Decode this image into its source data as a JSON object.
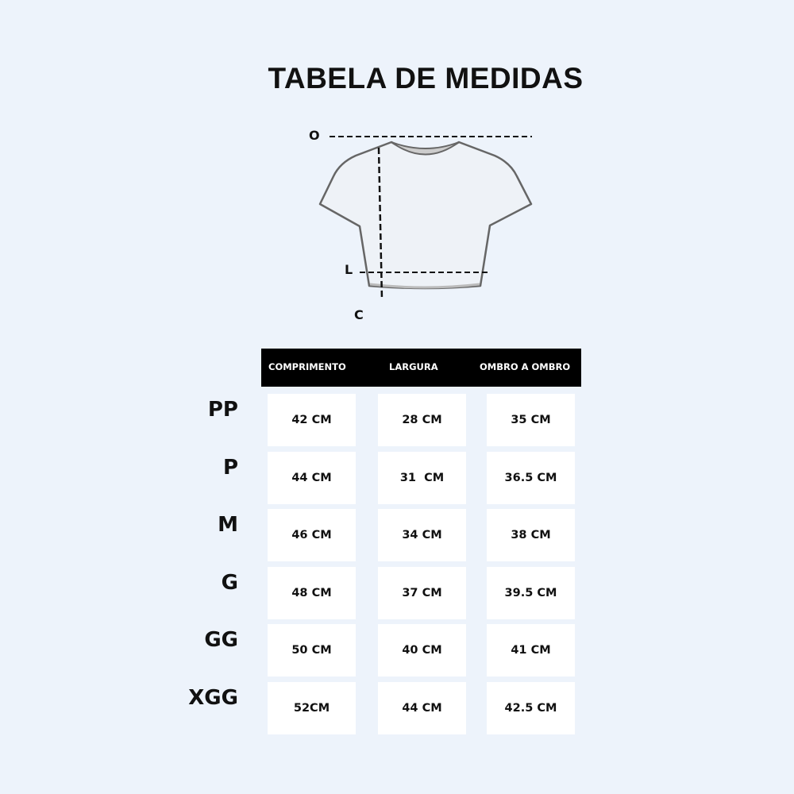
{
  "title": "TABELA DE MEDIDAS",
  "diagram": {
    "labels": {
      "shoulder": "O",
      "width": "L",
      "length": "C"
    }
  },
  "table": {
    "headers": [
      "COMPRIMENTO",
      "LARGURA",
      "OMBRO A OMBRO"
    ],
    "rows": [
      {
        "size": "PP",
        "values": [
          "42 CM",
          "28 CM",
          "35 CM"
        ]
      },
      {
        "size": "P",
        "values": [
          "44 CM",
          "31  CM",
          "36.5 CM"
        ]
      },
      {
        "size": "M",
        "values": [
          "46 CM",
          "34 CM",
          "38 CM"
        ]
      },
      {
        "size": "G",
        "values": [
          "48 CM",
          "37 CM",
          "39.5 CM"
        ]
      },
      {
        "size": "GG",
        "values": [
          "50 CM",
          "40 CM",
          "41 CM"
        ]
      },
      {
        "size": "XGG",
        "values": [
          "52CM",
          "44 CM",
          "42.5 CM"
        ]
      }
    ]
  },
  "colors": {
    "background": "#edf3fb",
    "header": "#000000",
    "cell": "#ffffff"
  }
}
